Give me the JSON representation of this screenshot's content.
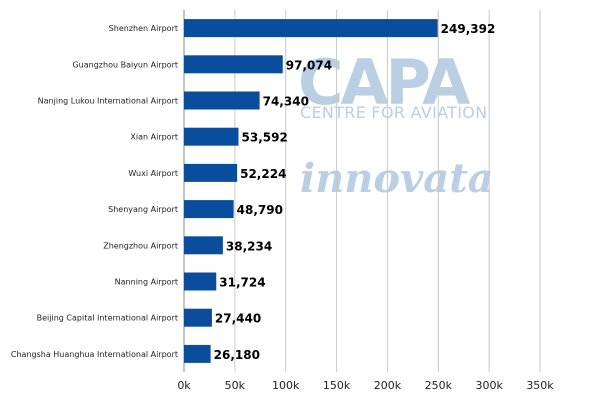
{
  "chart_data": {
    "type": "bar",
    "orientation": "horizontal",
    "categories": [
      "Shenzhen Airport",
      "Guangzhou Baiyun Airport",
      "Nanjing Lukou International Airport",
      "Xian Airport",
      "Wuxi Airport",
      "Shenyang Airport",
      "Zhengzhou Airport",
      "Nanning Airport",
      "Beijing Capital International Airport",
      "Changsha Huanghua International Airport"
    ],
    "values": [
      249392,
      97074,
      74340,
      53592,
      52224,
      48790,
      38234,
      31724,
      27440,
      26180
    ],
    "data_labels": [
      "249,392",
      "97,074",
      "74,340",
      "53,592",
      "52,224",
      "48,790",
      "38,234",
      "31,724",
      "27,440",
      "26,180"
    ],
    "x_ticks": [
      0,
      50000,
      100000,
      150000,
      200000,
      250000,
      300000,
      350000
    ],
    "x_tick_labels": [
      "0k",
      "50k",
      "100k",
      "150k",
      "200k",
      "250k",
      "300k",
      "350k"
    ],
    "xlim": [
      0,
      350000
    ],
    "grid": true,
    "legend": "none",
    "bar_color": "#0A4D9C",
    "grid_color": "#C8C8C8"
  },
  "watermark": {
    "capa_text": "CAPA",
    "capa_subtitle": "CENTRE FOR AVIATION",
    "innovata_text": "innovata",
    "color": "#A9C3DC"
  }
}
